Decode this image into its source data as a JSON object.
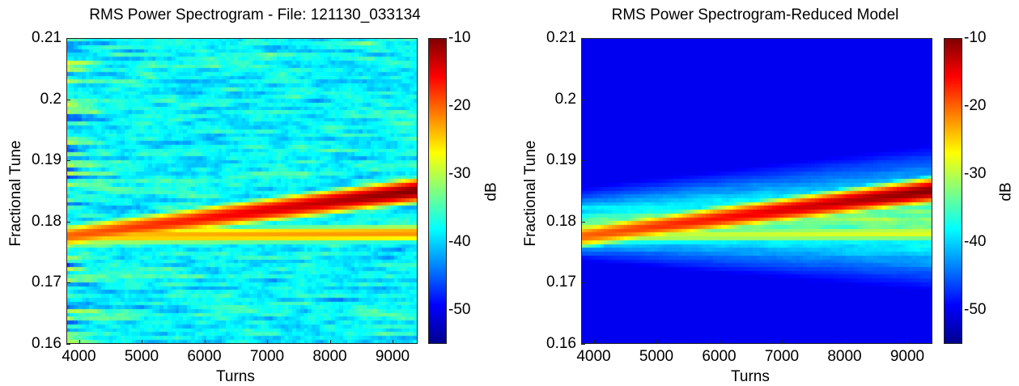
{
  "chart_data": [
    {
      "type": "heatmap",
      "title": "RMS Power Spectrogram - File: 121130_033134",
      "xlabel": "Turns",
      "ylabel": "Fractional Tune",
      "xlim": [
        3800,
        9400
      ],
      "ylim": [
        0.16,
        0.21
      ],
      "x_ticks": [
        "4000",
        "5000",
        "6000",
        "7000",
        "8000",
        "9000"
      ],
      "y_ticks": [
        "0.16",
        "0.17",
        "0.18",
        "0.19",
        "0.2",
        "0.21"
      ],
      "colorbar": {
        "label": "dB",
        "range": [
          -55,
          -10
        ],
        "ticks": [
          "-10",
          "-20",
          "-30",
          "-40",
          "-50"
        ]
      },
      "colormap": "jet",
      "background_level_db": -38,
      "features": [
        {
          "name": "upper tune line",
          "start": [
            3800,
            0.1775
          ],
          "end": [
            9400,
            0.185
          ],
          "peak_db": -10
        },
        {
          "name": "lower tune line",
          "start": [
            3800,
            0.1775
          ],
          "end": [
            9400,
            0.178
          ],
          "peak_db": -22
        }
      ]
    },
    {
      "type": "heatmap",
      "title": "RMS Power Spectrogram-Reduced Model",
      "xlabel": "Turns",
      "ylabel": "Fractional Tune",
      "xlim": [
        3800,
        9400
      ],
      "ylim": [
        0.16,
        0.21
      ],
      "x_ticks": [
        "4000",
        "5000",
        "6000",
        "7000",
        "8000",
        "9000"
      ],
      "y_ticks": [
        "0.16",
        "0.17",
        "0.18",
        "0.19",
        "0.2",
        "0.21"
      ],
      "colorbar": {
        "label": "dB",
        "range": [
          -55,
          -10
        ],
        "ticks": [
          "-10",
          "-20",
          "-30",
          "-40",
          "-50"
        ]
      },
      "colormap": "jet",
      "background_level_db": -50,
      "features": [
        {
          "name": "upper tune line",
          "start": [
            3800,
            0.1775
          ],
          "end": [
            9400,
            0.185
          ],
          "peak_db": -10
        },
        {
          "name": "lower tune line",
          "start": [
            3800,
            0.1775
          ],
          "end": [
            9400,
            0.178
          ],
          "peak_db": -28
        }
      ]
    }
  ]
}
